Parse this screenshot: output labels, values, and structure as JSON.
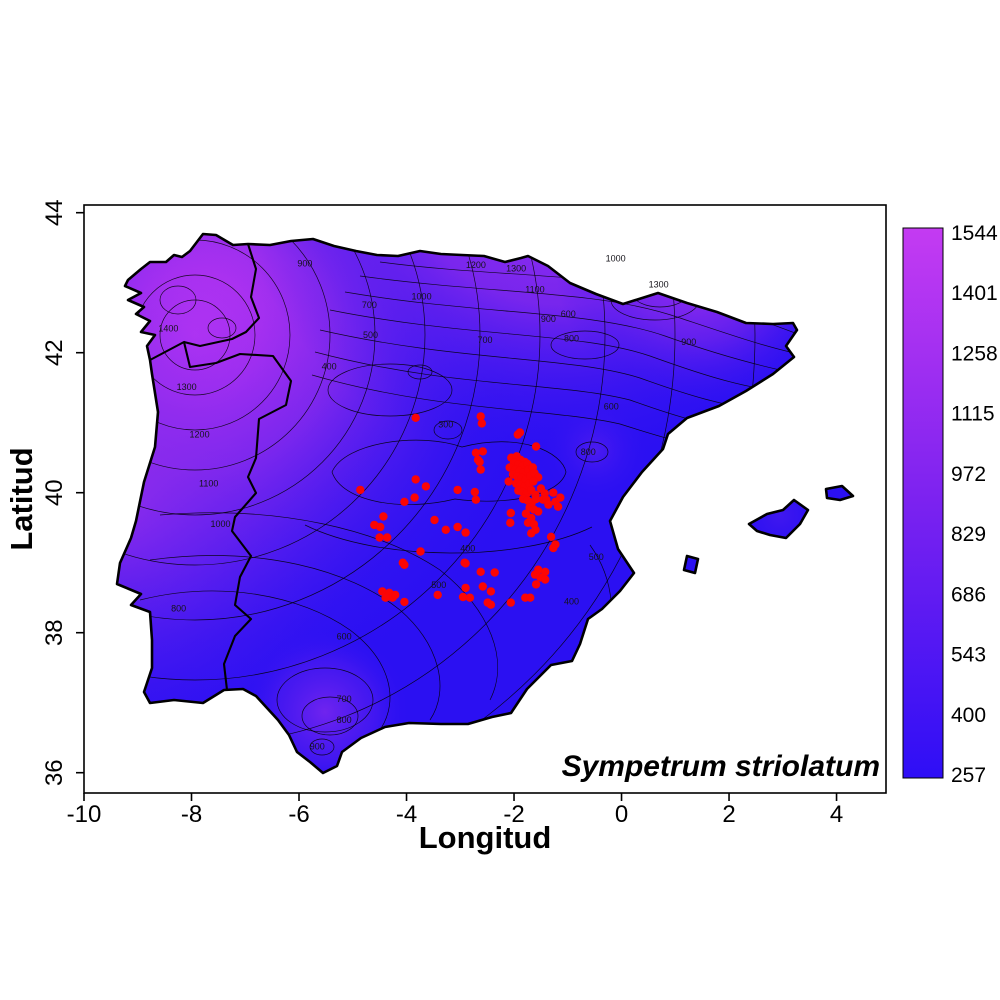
{
  "chart_data": {
    "type": "contour-map",
    "region": "Iberian Peninsula",
    "title": "Sympetrum striolatum",
    "xlabel": "Longitud",
    "ylabel": "Latitud",
    "x_ticks": [
      -10,
      -8,
      -6,
      -4,
      -2,
      0,
      2,
      4
    ],
    "y_ticks": [
      36,
      38,
      40,
      42,
      44
    ],
    "x_range": [
      -10.0,
      4.92
    ],
    "y_range": [
      35.71,
      44.11
    ],
    "grid": false,
    "legend_position": "right-colorbar",
    "colorbar_ticks": [
      1544,
      1401,
      1258,
      1115,
      972,
      829,
      686,
      543,
      400,
      257
    ],
    "value_range": [
      257,
      1544
    ],
    "contour_levels": [
      300,
      400,
      500,
      600,
      700,
      800,
      900,
      1000,
      1100,
      1200,
      1300,
      1400,
      1500
    ],
    "colors": {
      "low": "#2E0EF6",
      "mid": "#7B22F0",
      "high": "#C43BF2",
      "base_map": "#2B10F2",
      "nw_core": "#D23CF4",
      "point": "#FB0505",
      "outline": "#000000",
      "background": "#FFFFFF"
    },
    "contour_labels": [
      {
        "v": "1400",
        "lon": -8.43,
        "lat": 42.3
      },
      {
        "v": "1300",
        "lon": -8.09,
        "lat": 41.47
      },
      {
        "v": "1200",
        "lon": -7.85,
        "lat": 40.79
      },
      {
        "v": "1100",
        "lon": -7.68,
        "lat": 40.09
      },
      {
        "v": "1000",
        "lon": -7.46,
        "lat": 39.51
      },
      {
        "v": "900",
        "lon": -5.89,
        "lat": 43.23
      },
      {
        "v": "1200",
        "lon": -2.71,
        "lat": 43.21
      },
      {
        "v": "1300",
        "lon": -1.96,
        "lat": 43.16
      },
      {
        "v": "1100",
        "lon": -1.61,
        "lat": 42.86
      },
      {
        "v": "1000",
        "lon": -3.72,
        "lat": 42.76
      },
      {
        "v": "700",
        "lon": -4.69,
        "lat": 42.64
      },
      {
        "v": "500",
        "lon": -4.67,
        "lat": 42.21
      },
      {
        "v": "400",
        "lon": -5.44,
        "lat": 41.76
      },
      {
        "v": "700",
        "lon": -2.54,
        "lat": 42.14
      },
      {
        "v": "600",
        "lon": -0.99,
        "lat": 42.51
      },
      {
        "v": "900",
        "lon": -1.36,
        "lat": 42.44
      },
      {
        "v": "800",
        "lon": -0.93,
        "lat": 42.16
      },
      {
        "v": "1300",
        "lon": 0.69,
        "lat": 42.93
      },
      {
        "v": "1000",
        "lon": -0.11,
        "lat": 43.3
      },
      {
        "v": "900",
        "lon": 1.25,
        "lat": 42.11
      },
      {
        "v": "800",
        "lon": -0.62,
        "lat": 40.54
      },
      {
        "v": "600",
        "lon": -0.19,
        "lat": 41.19
      },
      {
        "v": "300",
        "lon": -3.27,
        "lat": 40.93
      },
      {
        "v": "400",
        "lon": -2.86,
        "lat": 39.16
      },
      {
        "v": "500",
        "lon": -3.4,
        "lat": 38.64
      },
      {
        "v": "400",
        "lon": -0.93,
        "lat": 38.4
      },
      {
        "v": "500",
        "lon": -0.47,
        "lat": 39.04
      },
      {
        "v": "800",
        "lon": -8.24,
        "lat": 38.3
      },
      {
        "v": "600",
        "lon": -5.16,
        "lat": 37.9
      },
      {
        "v": "700",
        "lon": -5.16,
        "lat": 37.01
      },
      {
        "v": "800",
        "lon": -5.16,
        "lat": 36.71
      },
      {
        "v": "900",
        "lon": -5.66,
        "lat": 36.33
      }
    ],
    "occurrence_points_lonlat": [
      [
        -3.83,
        41.07
      ],
      [
        -2.62,
        41.09
      ],
      [
        -2.6,
        40.99
      ],
      [
        -1.89,
        40.86
      ],
      [
        -1.93,
        40.83
      ],
      [
        -1.59,
        40.66
      ],
      [
        -2.71,
        40.57
      ],
      [
        -2.67,
        40.47
      ],
      [
        -2.64,
        40.44
      ],
      [
        -2.62,
        40.33
      ],
      [
        -2.58,
        40.59
      ],
      [
        -4.86,
        40.04
      ],
      [
        -2.05,
        40.5
      ],
      [
        -1.95,
        40.52
      ],
      [
        -1.88,
        40.47
      ],
      [
        -1.8,
        40.44
      ],
      [
        -2.0,
        40.43
      ],
      [
        -1.92,
        40.4
      ],
      [
        -1.84,
        40.38
      ],
      [
        -1.75,
        40.41
      ],
      [
        -2.08,
        40.36
      ],
      [
        -1.98,
        40.33
      ],
      [
        -1.9,
        40.31
      ],
      [
        -1.82,
        40.29
      ],
      [
        -1.73,
        40.33
      ],
      [
        -1.65,
        40.36
      ],
      [
        -2.02,
        40.26
      ],
      [
        -1.94,
        40.23
      ],
      [
        -1.86,
        40.21
      ],
      [
        -1.78,
        40.19
      ],
      [
        -1.7,
        40.24
      ],
      [
        -1.62,
        40.28
      ],
      [
        -1.55,
        40.22
      ],
      [
        -2.1,
        40.16
      ],
      [
        -1.96,
        40.13
      ],
      [
        -1.88,
        40.11
      ],
      [
        -1.8,
        40.09
      ],
      [
        -1.72,
        40.13
      ],
      [
        -1.64,
        40.16
      ],
      [
        -1.5,
        40.06
      ],
      [
        -1.43,
        39.99
      ],
      [
        -1.92,
        40.03
      ],
      [
        -1.84,
        40.01
      ],
      [
        -1.76,
        39.99
      ],
      [
        -1.68,
        40.04
      ],
      [
        -1.6,
        39.97
      ],
      [
        -1.83,
        39.91
      ],
      [
        -1.75,
        39.89
      ],
      [
        -1.67,
        39.86
      ],
      [
        -1.59,
        39.91
      ],
      [
        -1.46,
        39.9
      ],
      [
        -1.71,
        39.79
      ],
      [
        -1.63,
        39.76
      ],
      [
        -1.55,
        39.73
      ],
      [
        -1.78,
        39.7
      ],
      [
        -1.68,
        39.64
      ],
      [
        -1.74,
        39.57
      ],
      [
        -1.27,
        40.0
      ],
      [
        -1.23,
        39.87
      ],
      [
        -1.14,
        39.93
      ],
      [
        -1.18,
        39.8
      ],
      [
        -1.4,
        39.9
      ],
      [
        -1.36,
        39.83
      ],
      [
        -3.83,
        40.19
      ],
      [
        -3.64,
        40.09
      ],
      [
        -4.04,
        39.87
      ],
      [
        -3.85,
        39.93
      ],
      [
        -3.05,
        40.04
      ],
      [
        -2.73,
        40.01
      ],
      [
        -2.71,
        39.9
      ],
      [
        -4.43,
        39.66
      ],
      [
        -4.6,
        39.54
      ],
      [
        -4.49,
        39.51
      ],
      [
        -4.5,
        39.36
      ],
      [
        -4.36,
        39.36
      ],
      [
        -3.48,
        39.61
      ],
      [
        -3.27,
        39.47
      ],
      [
        -3.05,
        39.51
      ],
      [
        -2.9,
        39.43
      ],
      [
        -2.06,
        39.71
      ],
      [
        -2.07,
        39.57
      ],
      [
        -1.63,
        39.55
      ],
      [
        -1.6,
        39.47
      ],
      [
        -1.68,
        39.42
      ],
      [
        -4.07,
        39.0
      ],
      [
        -2.92,
        39.0
      ],
      [
        -3.74,
        39.16
      ],
      [
        -1.27,
        39.21
      ],
      [
        -1.31,
        39.37
      ],
      [
        -1.23,
        39.26
      ],
      [
        -4.04,
        38.97
      ],
      [
        -2.9,
        38.99
      ],
      [
        -2.62,
        38.87
      ],
      [
        -2.36,
        38.86
      ],
      [
        -1.55,
        38.9
      ],
      [
        -1.42,
        38.87
      ],
      [
        -1.51,
        38.79
      ],
      [
        -1.42,
        38.76
      ],
      [
        -2.58,
        38.66
      ],
      [
        -2.43,
        38.59
      ],
      [
        -2.9,
        38.64
      ],
      [
        -2.82,
        38.5
      ],
      [
        -2.95,
        38.51
      ],
      [
        -4.45,
        38.59
      ],
      [
        -4.32,
        38.57
      ],
      [
        -4.26,
        38.5
      ],
      [
        -4.39,
        38.5
      ],
      [
        -4.21,
        38.54
      ],
      [
        -4.04,
        38.44
      ],
      [
        -3.42,
        38.54
      ],
      [
        -2.49,
        38.43
      ],
      [
        -2.43,
        38.4
      ],
      [
        -2.06,
        38.43
      ],
      [
        -1.79,
        38.5
      ],
      [
        -1.7,
        38.5
      ],
      [
        -1.61,
        38.83
      ],
      [
        -1.59,
        38.69
      ]
    ]
  }
}
